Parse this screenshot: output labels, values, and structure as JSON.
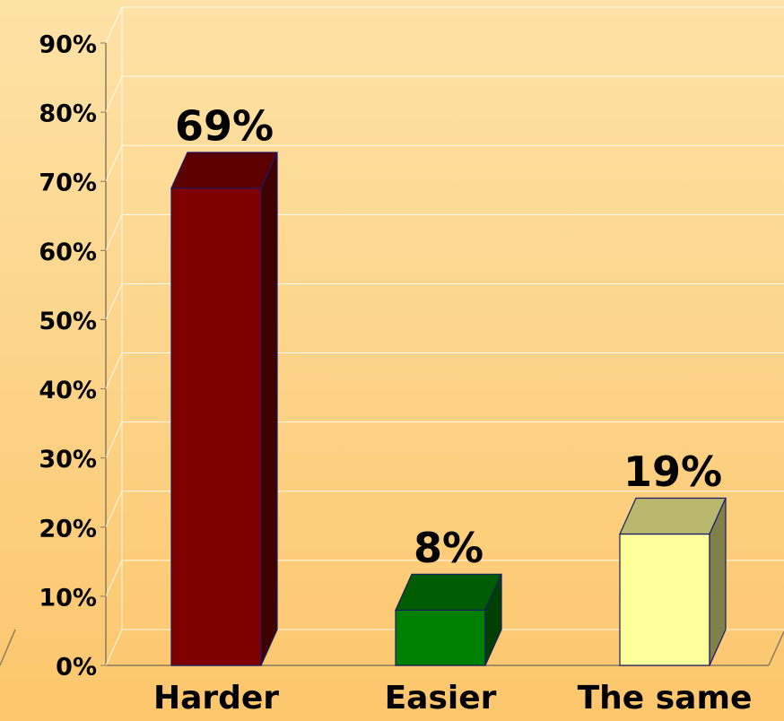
{
  "chart_data": {
    "type": "bar3d",
    "categories": [
      "Harder",
      "Easier",
      "The same"
    ],
    "values": [
      69,
      8,
      19
    ],
    "value_labels": [
      "69%",
      "8%",
      "19%"
    ],
    "colors": [
      "#800000",
      "#008000",
      "#ffff99"
    ],
    "ylim": [
      0,
      90
    ],
    "yticks": [
      {
        "value": 0,
        "label": "0%"
      },
      {
        "value": 10,
        "label": "10%"
      },
      {
        "value": 20,
        "label": "20%"
      },
      {
        "value": 30,
        "label": "30%"
      },
      {
        "value": 40,
        "label": "40%"
      },
      {
        "value": 50,
        "label": "50%"
      },
      {
        "value": 60,
        "label": "60%"
      },
      {
        "value": 70,
        "label": "70%"
      },
      {
        "value": 80,
        "label": "80%"
      },
      {
        "value": 90,
        "label": "90%"
      }
    ],
    "grid": true
  }
}
